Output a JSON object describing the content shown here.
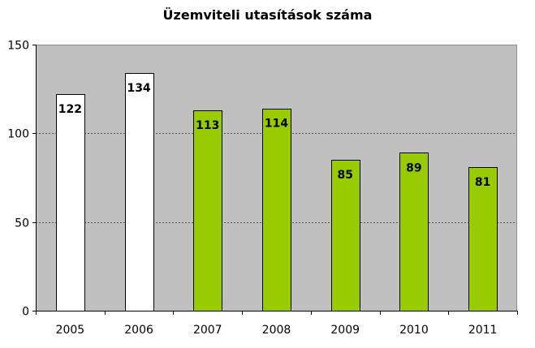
{
  "chart_data": {
    "type": "bar",
    "title": "Üzemviteli utasítások száma",
    "xlabel": "",
    "ylabel": "",
    "categories": [
      "2005",
      "2006",
      "2007",
      "2008",
      "2009",
      "2010",
      "2011"
    ],
    "values": [
      122,
      134,
      113,
      114,
      85,
      89,
      81
    ],
    "data_labels": [
      "122",
      "134",
      "113",
      "114",
      "85",
      "89",
      "81"
    ],
    "bar_colors": [
      "#ffffff",
      "#ffffff",
      "#99cc00",
      "#99cc00",
      "#99cc00",
      "#99cc00",
      "#99cc00"
    ],
    "ylim": [
      0,
      150
    ],
    "yticks": [
      0,
      50,
      100,
      150
    ],
    "ytick_labels": [
      "0",
      "50",
      "100",
      "150"
    ],
    "grid": true,
    "legend": "none",
    "plot_background": "#c0c0c0"
  }
}
